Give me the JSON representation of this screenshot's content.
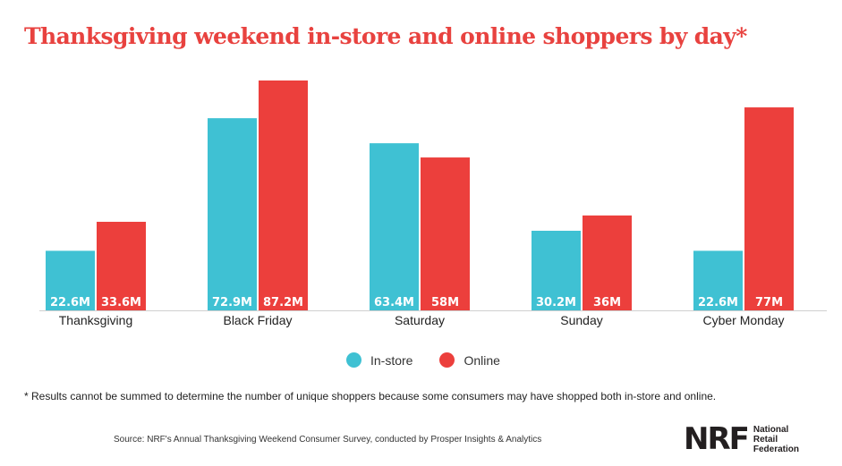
{
  "chart_data": {
    "type": "bar",
    "title": "Thanksgiving weekend in-store and online shoppers by day*",
    "categories": [
      "Thanksgiving",
      "Black Friday",
      "Saturday",
      "Sunday",
      "Cyber Monday"
    ],
    "series": [
      {
        "name": "In-store",
        "color": "#3fc1d3",
        "values": [
          22.6,
          72.9,
          63.4,
          30.2,
          22.6
        ],
        "labels": [
          "22.6M",
          "72.9M",
          "63.4M",
          "30.2M",
          "22.6M"
        ]
      },
      {
        "name": "Online",
        "color": "#ec3f3c",
        "values": [
          33.6,
          87.2,
          58,
          36,
          77
        ],
        "labels": [
          "33.6M",
          "87.2M",
          "58M",
          "36M",
          "77M"
        ]
      }
    ],
    "ylim": [
      0,
      87.2
    ],
    "grid": false,
    "legend_position": "bottom-center"
  },
  "legend": {
    "instore": "In-store",
    "online": "Online"
  },
  "footnote": "* Results cannot be summed to determine the number of unique shoppers because some consumers may have shopped both in-store and online.",
  "source": "Source: NRF's Annual Thanksgiving Weekend Consumer Survey, conducted by Prosper Insights & Analytics",
  "logo": {
    "mark": "NRF",
    "line1": "National",
    "line2": "Retail",
    "line3": "Federation"
  }
}
